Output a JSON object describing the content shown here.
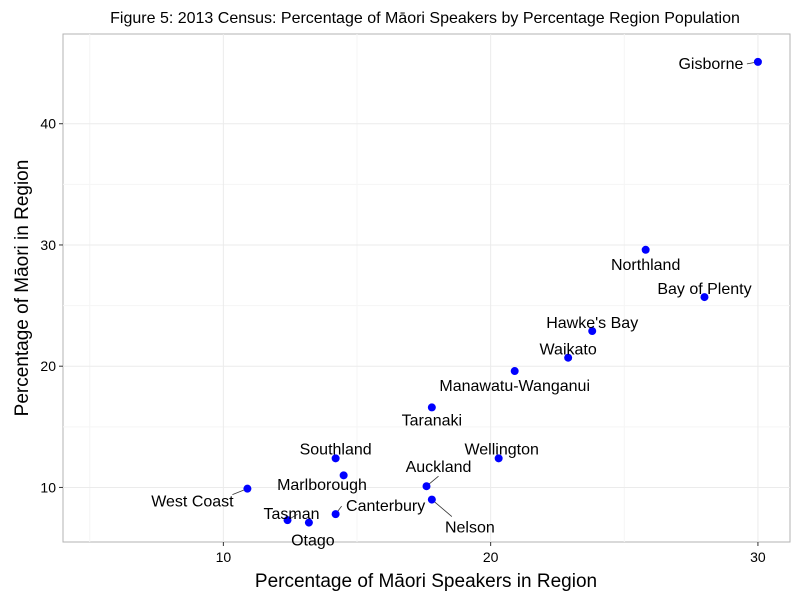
{
  "chart_data": {
    "type": "scatter",
    "title": "Figure 5: 2013 Census: Percentage of Māori Speakers by Percentage Region Population",
    "xlabel": "Percentage of Māori Speakers in Region",
    "ylabel": "Percentage of Māori in Region",
    "xlim": [
      4,
      31.2
    ],
    "ylim": [
      5.5,
      47.4
    ],
    "xticks": [
      10,
      20,
      30
    ],
    "yticks": [
      10,
      20,
      30,
      40
    ],
    "xtick_labels": [
      "10",
      "20",
      "30"
    ],
    "ytick_labels": [
      "10",
      "20",
      "30",
      "40"
    ],
    "grid": true,
    "point_color": "#0000ff",
    "points": [
      {
        "name": "Gisborne",
        "x": 30.0,
        "y": 45.1
      },
      {
        "name": "Northland",
        "x": 25.8,
        "y": 29.6
      },
      {
        "name": "Bay of Plenty",
        "x": 28.0,
        "y": 25.7
      },
      {
        "name": "Hawke's Bay",
        "x": 23.8,
        "y": 22.9
      },
      {
        "name": "Waikato",
        "x": 22.9,
        "y": 20.7
      },
      {
        "name": "Manawatu-Wanganui",
        "x": 20.9,
        "y": 19.6
      },
      {
        "name": "Taranaki",
        "x": 17.8,
        "y": 16.6
      },
      {
        "name": "Wellington",
        "x": 20.3,
        "y": 12.4
      },
      {
        "name": "Southland",
        "x": 14.2,
        "y": 12.4
      },
      {
        "name": "Auckland",
        "x": 17.6,
        "y": 10.1
      },
      {
        "name": "Marlborough",
        "x": 14.5,
        "y": 11.0
      },
      {
        "name": "West Coast",
        "x": 10.9,
        "y": 9.9
      },
      {
        "name": "Canterbury",
        "x": 14.2,
        "y": 7.8
      },
      {
        "name": "Nelson",
        "x": 17.8,
        "y": 9.0
      },
      {
        "name": "Tasman",
        "x": 12.4,
        "y": 7.3
      },
      {
        "name": "Otago",
        "x": 13.2,
        "y": 7.1
      }
    ]
  }
}
